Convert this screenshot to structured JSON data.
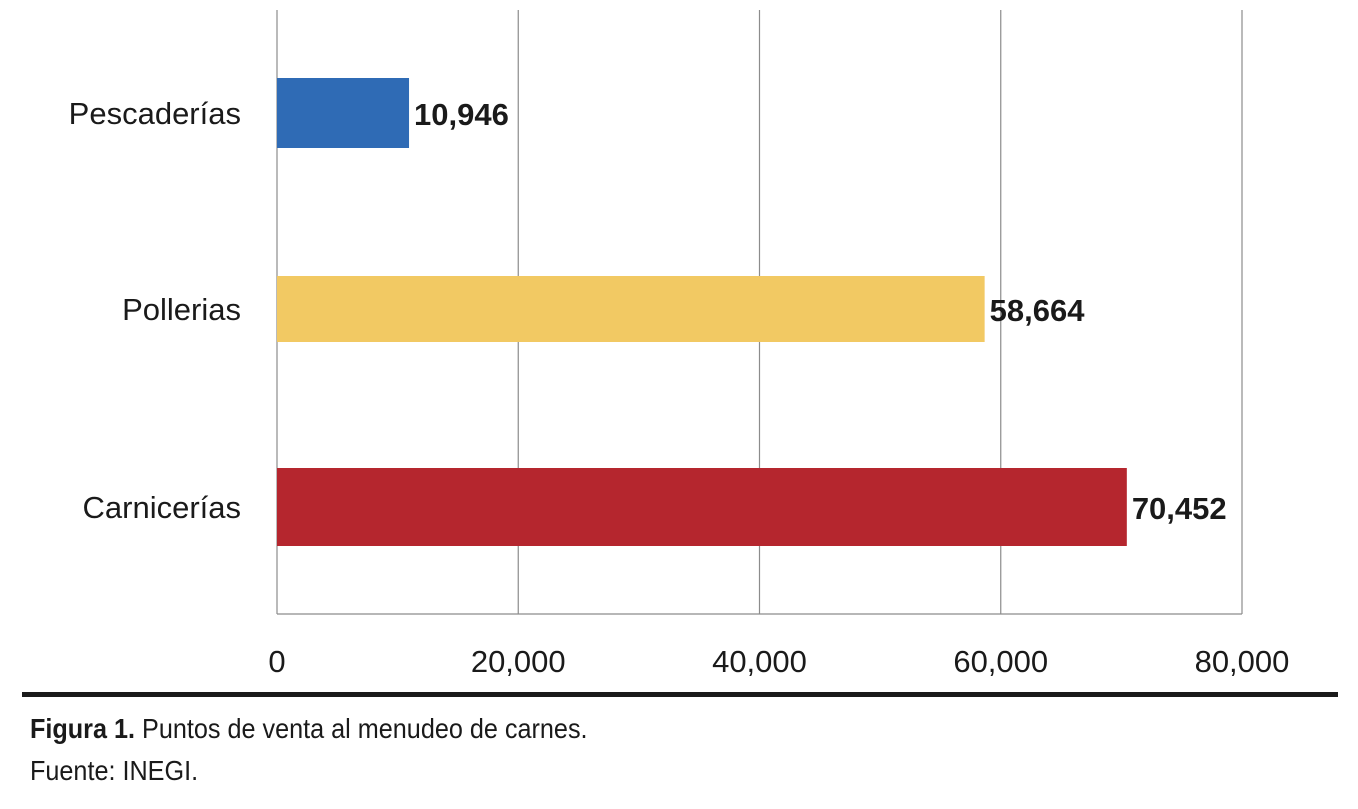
{
  "chart_data": {
    "type": "bar",
    "orientation": "horizontal",
    "categories": [
      "Pescaderías",
      "Pollerias",
      "Carnicerías"
    ],
    "values": [
      10946,
      58664,
      70452
    ],
    "value_labels": [
      "10,946",
      "58,664",
      "70,452"
    ],
    "colors": [
      "#2f6bb5",
      "#f2c963",
      "#b5262e"
    ],
    "xlim": [
      0,
      80000
    ],
    "x_ticks": [
      0,
      20000,
      40000,
      60000,
      80000
    ],
    "x_tick_labels": [
      "0",
      "20,000",
      "40,000",
      "60,000",
      "80,000"
    ],
    "grid": true,
    "title": "",
    "xlabel": "",
    "ylabel": ""
  },
  "caption": {
    "figure_label": "Figura 1.",
    "text": "Puntos de venta al menudeo de carnes.",
    "source": "Fuente: INEGI."
  }
}
